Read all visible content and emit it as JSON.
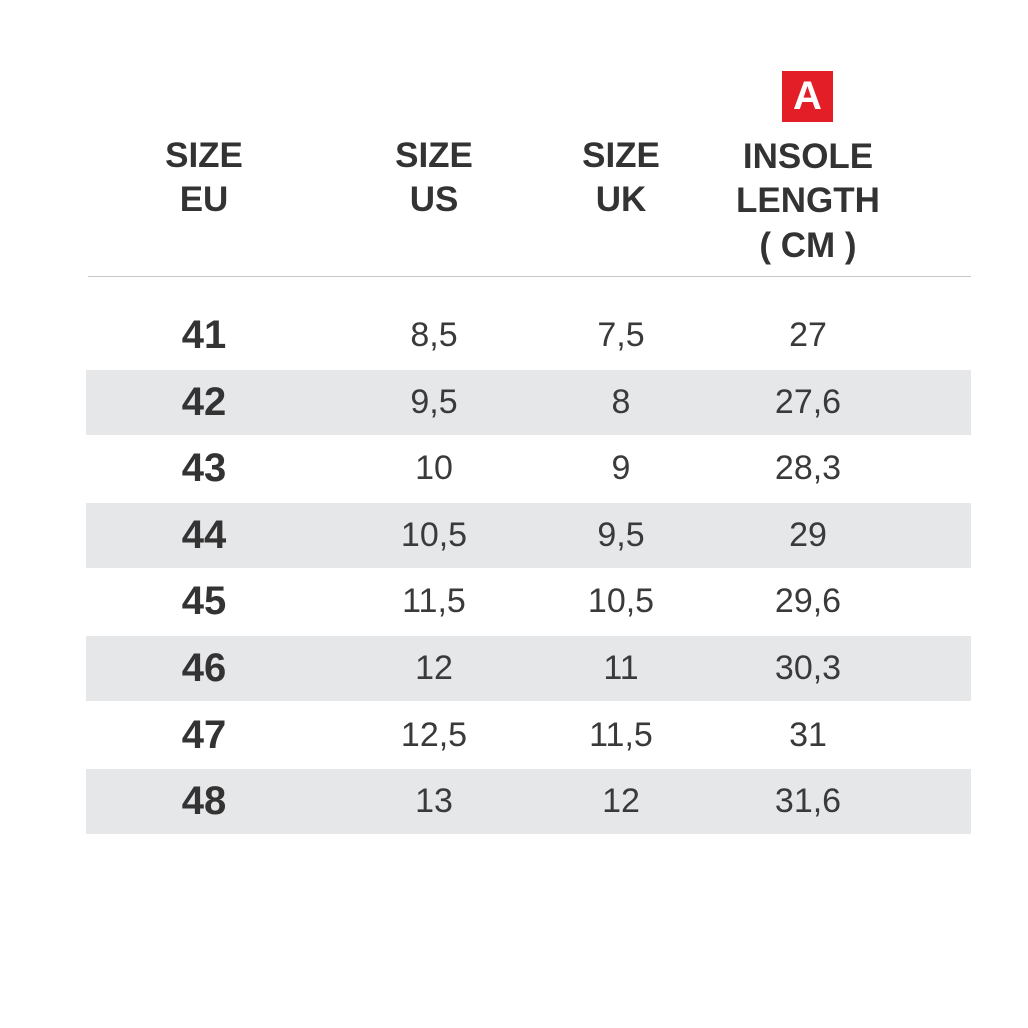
{
  "header": {
    "badge": "A",
    "columns": [
      [
        "SIZE",
        "EU"
      ],
      [
        "SIZE",
        "US"
      ],
      [
        "SIZE",
        "UK"
      ],
      [
        "INSOLE",
        "LENGTH",
        "( CM )"
      ]
    ]
  },
  "table": {
    "rows": [
      [
        "41",
        "8,5",
        "7,5",
        "27"
      ],
      [
        "42",
        "9,5",
        "8",
        "27,6"
      ],
      [
        "43",
        "10",
        "9",
        "28,3"
      ],
      [
        "44",
        "10,5",
        "9,5",
        "29"
      ],
      [
        "45",
        "11,5",
        "10,5",
        "29,6"
      ],
      [
        "46",
        "12",
        "11",
        "30,3"
      ],
      [
        "47",
        "12,5",
        "11,5",
        "31"
      ],
      [
        "48",
        "13",
        "12",
        "31,6"
      ]
    ]
  }
}
